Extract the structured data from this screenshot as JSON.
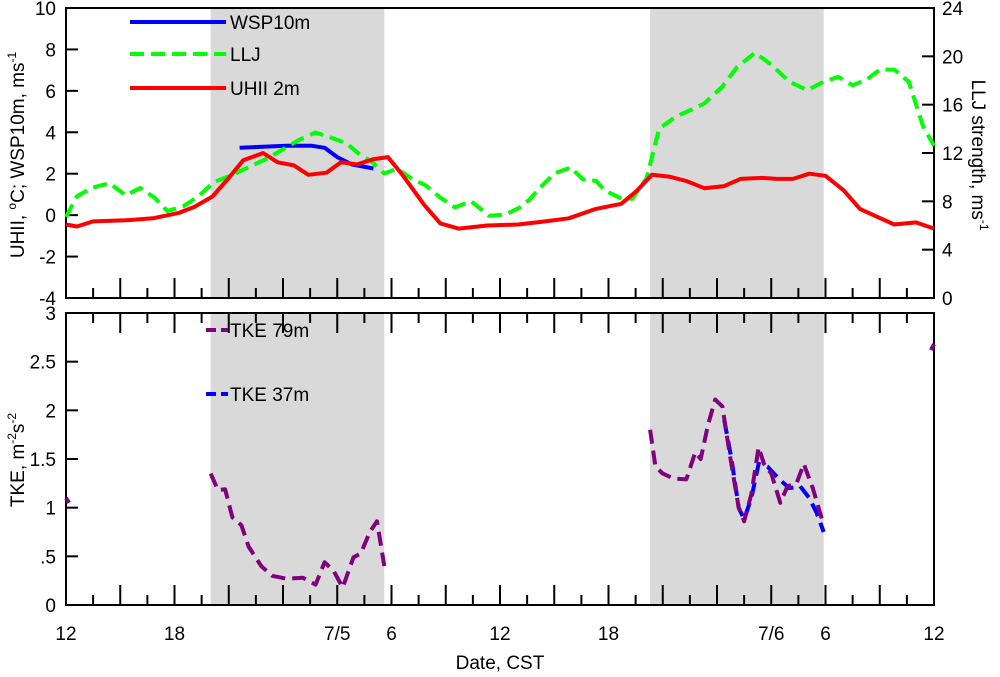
{
  "chart_data": [
    {
      "type": "line",
      "panel": "top",
      "title": "",
      "xlabel": "",
      "ylabel": "UHII, °C; WSP10m, ms-1",
      "ylabel_parts": {
        "prefix": "UHII, ",
        "deg": "o",
        "mid": "C; WSP10m, ms",
        "sup": "-1"
      },
      "y2label": "LLJ strength, ms-1",
      "y2label_parts": {
        "main": "LLJ strength, ms",
        "sup": "-1"
      },
      "xlim": [
        12,
        60
      ],
      "ylim": [
        -4,
        10
      ],
      "y2lim": [
        0,
        24
      ],
      "yticks": [
        -4,
        -2,
        0,
        2,
        4,
        6,
        8,
        10
      ],
      "ytick_labels": [
        "-4",
        "-2",
        "0",
        "2",
        "4",
        "6",
        "8",
        "10"
      ],
      "y2ticks": [
        0,
        4,
        8,
        12,
        16,
        20,
        24
      ],
      "y2tick_labels": [
        "0",
        "4",
        "8",
        "12",
        "16",
        "20",
        "24"
      ],
      "legend_position": "top-left",
      "night_shading_hours": [
        [
          20,
          29.6
        ],
        [
          44.3,
          53.9
        ]
      ],
      "series": [
        {
          "name": "WSP10m",
          "color": "#0000ff",
          "dash": "solid",
          "axis": "left",
          "x": [
            21.6,
            22.9,
            24.2,
            25.6,
            26.3,
            27,
            27.8,
            29
          ],
          "values": [
            3.25,
            3.3,
            3.35,
            3.35,
            3.25,
            2.8,
            2.45,
            2.25
          ]
        },
        {
          "name": "LLJ",
          "color": "#00ff00",
          "dash": "dashed",
          "axis": "right",
          "x": [
            12,
            12.6,
            13.4,
            14.4,
            15.3,
            16.1,
            16.9,
            17.6,
            18.5,
            19.3,
            20.2,
            21.2,
            22.2,
            23.2,
            24.1,
            24.9,
            25.8,
            26.6,
            27.5,
            28.3,
            28.9,
            29.6,
            30.3,
            31.1,
            31.9,
            32.7,
            33.5,
            34.4,
            35.4,
            36.3,
            37.1,
            37.6,
            38.2,
            39,
            39.9,
            40.6,
            41.3,
            41.8,
            42.6,
            43.3,
            44.1,
            44.8,
            45.7,
            46.6,
            47.3,
            48.3,
            49.1,
            50.1,
            51,
            52,
            53,
            53.9,
            54.7,
            55.5,
            56.3,
            57,
            57.8,
            58.6,
            59.4,
            60
          ],
          "values": [
            6.7,
            8.4,
            9.1,
            9.5,
            8.5,
            9.1,
            8.3,
            7.2,
            7.6,
            8.4,
            9.6,
            10.2,
            10.9,
            11.6,
            12.4,
            13.1,
            13.7,
            13.3,
            12.8,
            11.8,
            11.3,
            10.3,
            10.7,
            9.9,
            9.3,
            8.3,
            7.5,
            8.0,
            6.8,
            6.9,
            7.5,
            8.1,
            9.1,
            10.3,
            10.8,
            9.8,
            9.7,
            8.9,
            8.3,
            8.2,
            9.9,
            14.0,
            15.0,
            15.6,
            16.1,
            17.5,
            19.1,
            20.3,
            19.3,
            17.9,
            17.2,
            17.9,
            18.3,
            17.6,
            18.1,
            18.9,
            18.9,
            17.9,
            14.2,
            12.6
          ]
        },
        {
          "name": "UHII 2m",
          "color": "#ff0000",
          "dash": "solid",
          "axis": "left",
          "x": [
            12,
            12.6,
            13.5,
            15.3,
            16.8,
            18.2,
            19.1,
            20.1,
            21,
            21.8,
            22.9,
            23.7,
            24.6,
            25.4,
            26.4,
            27.2,
            28.1,
            29,
            29.8,
            30.6,
            31.8,
            32.7,
            33.7,
            35.3,
            37,
            38.5,
            39.8,
            41.3,
            42.7,
            43.6,
            44.4,
            45.4,
            46.3,
            47.3,
            48.4,
            49.3,
            50.5,
            51.3,
            52.2,
            53.1,
            54,
            55,
            55.9,
            56.9,
            57.8,
            59,
            60
          ],
          "values": [
            -0.45,
            -0.55,
            -0.3,
            -0.25,
            -0.15,
            0.1,
            0.4,
            0.9,
            1.8,
            2.65,
            3.0,
            2.55,
            2.4,
            1.95,
            2.05,
            2.55,
            2.45,
            2.7,
            2.8,
            1.95,
            0.5,
            -0.4,
            -0.65,
            -0.5,
            -0.45,
            -0.3,
            -0.15,
            0.3,
            0.55,
            1.2,
            1.95,
            1.85,
            1.65,
            1.3,
            1.4,
            1.75,
            1.8,
            1.75,
            1.75,
            2.0,
            1.9,
            1.2,
            0.3,
            -0.1,
            -0.45,
            -0.35,
            -0.65
          ]
        }
      ]
    },
    {
      "type": "line",
      "panel": "bottom",
      "title": "",
      "xlabel": "Date, CST",
      "ylabel": "TKE, m-2s-2",
      "ylabel_parts": {
        "a": "TKE, m",
        "s1": "-2",
        "b": "s",
        "s2": "-2"
      },
      "xlim": [
        12,
        60
      ],
      "ylim": [
        0,
        3
      ],
      "yticks": [
        0,
        0.5,
        1,
        1.5,
        2,
        2.5,
        3
      ],
      "ytick_labels": [
        "0",
        ".5",
        "1",
        "1.5",
        "2",
        "2.5",
        "3"
      ],
      "xticks": [
        12,
        18,
        27,
        30,
        36,
        42,
        51,
        54,
        60
      ],
      "xtick_labels": [
        "12",
        "18",
        "7/5",
        "6",
        "12",
        "18",
        "7/6",
        "6",
        "12"
      ],
      "legend_position": "top-left",
      "series": [
        {
          "name": "TKE 79m",
          "color": "#800080",
          "dash": "dashed",
          "x": [
            20,
            20.4,
            20.8,
            21.2,
            21.7,
            22.1,
            22.8,
            23.4,
            24.2,
            25.1,
            25.8,
            26.3,
            26.8,
            27.3,
            27.9,
            28.3,
            28.8,
            29.2,
            29.6
          ],
          "values": [
            1.35,
            1.18,
            1.19,
            0.9,
            0.82,
            0.6,
            0.4,
            0.3,
            0.27,
            0.28,
            0.21,
            0.44,
            0.35,
            0.18,
            0.49,
            0.53,
            0.75,
            0.86,
            0.4
          ],
          "x2": [
            44.3,
            44.6,
            45.0,
            45.6,
            46.3,
            46.8,
            47.1,
            47.5,
            47.9,
            48.3,
            48.7,
            49.2,
            49.5,
            49.9,
            50.3,
            50.6,
            51,
            51.5,
            51.9,
            52.4,
            52.8,
            53.3,
            53.9
          ],
          "values2": [
            1.8,
            1.42,
            1.35,
            1.3,
            1.29,
            1.57,
            1.5,
            1.85,
            2.11,
            2.04,
            1.55,
            1.0,
            0.86,
            1.14,
            1.62,
            1.45,
            1.35,
            1.05,
            1.22,
            1.25,
            1.45,
            1.2,
            0.82
          ]
        },
        {
          "name": "TKE 37m",
          "color": "#0000ff",
          "dash": "dashed",
          "x": [
            48.4,
            48.8,
            49.2,
            49.5,
            49.9,
            50.3,
            50.8,
            51.4,
            52,
            52.6,
            53.1,
            53.5,
            53.9
          ],
          "values": [
            1.9,
            1.5,
            1.0,
            0.88,
            1.1,
            1.45,
            1.42,
            1.3,
            1.2,
            1.22,
            1.1,
            0.95,
            0.75
          ]
        }
      ]
    }
  ]
}
